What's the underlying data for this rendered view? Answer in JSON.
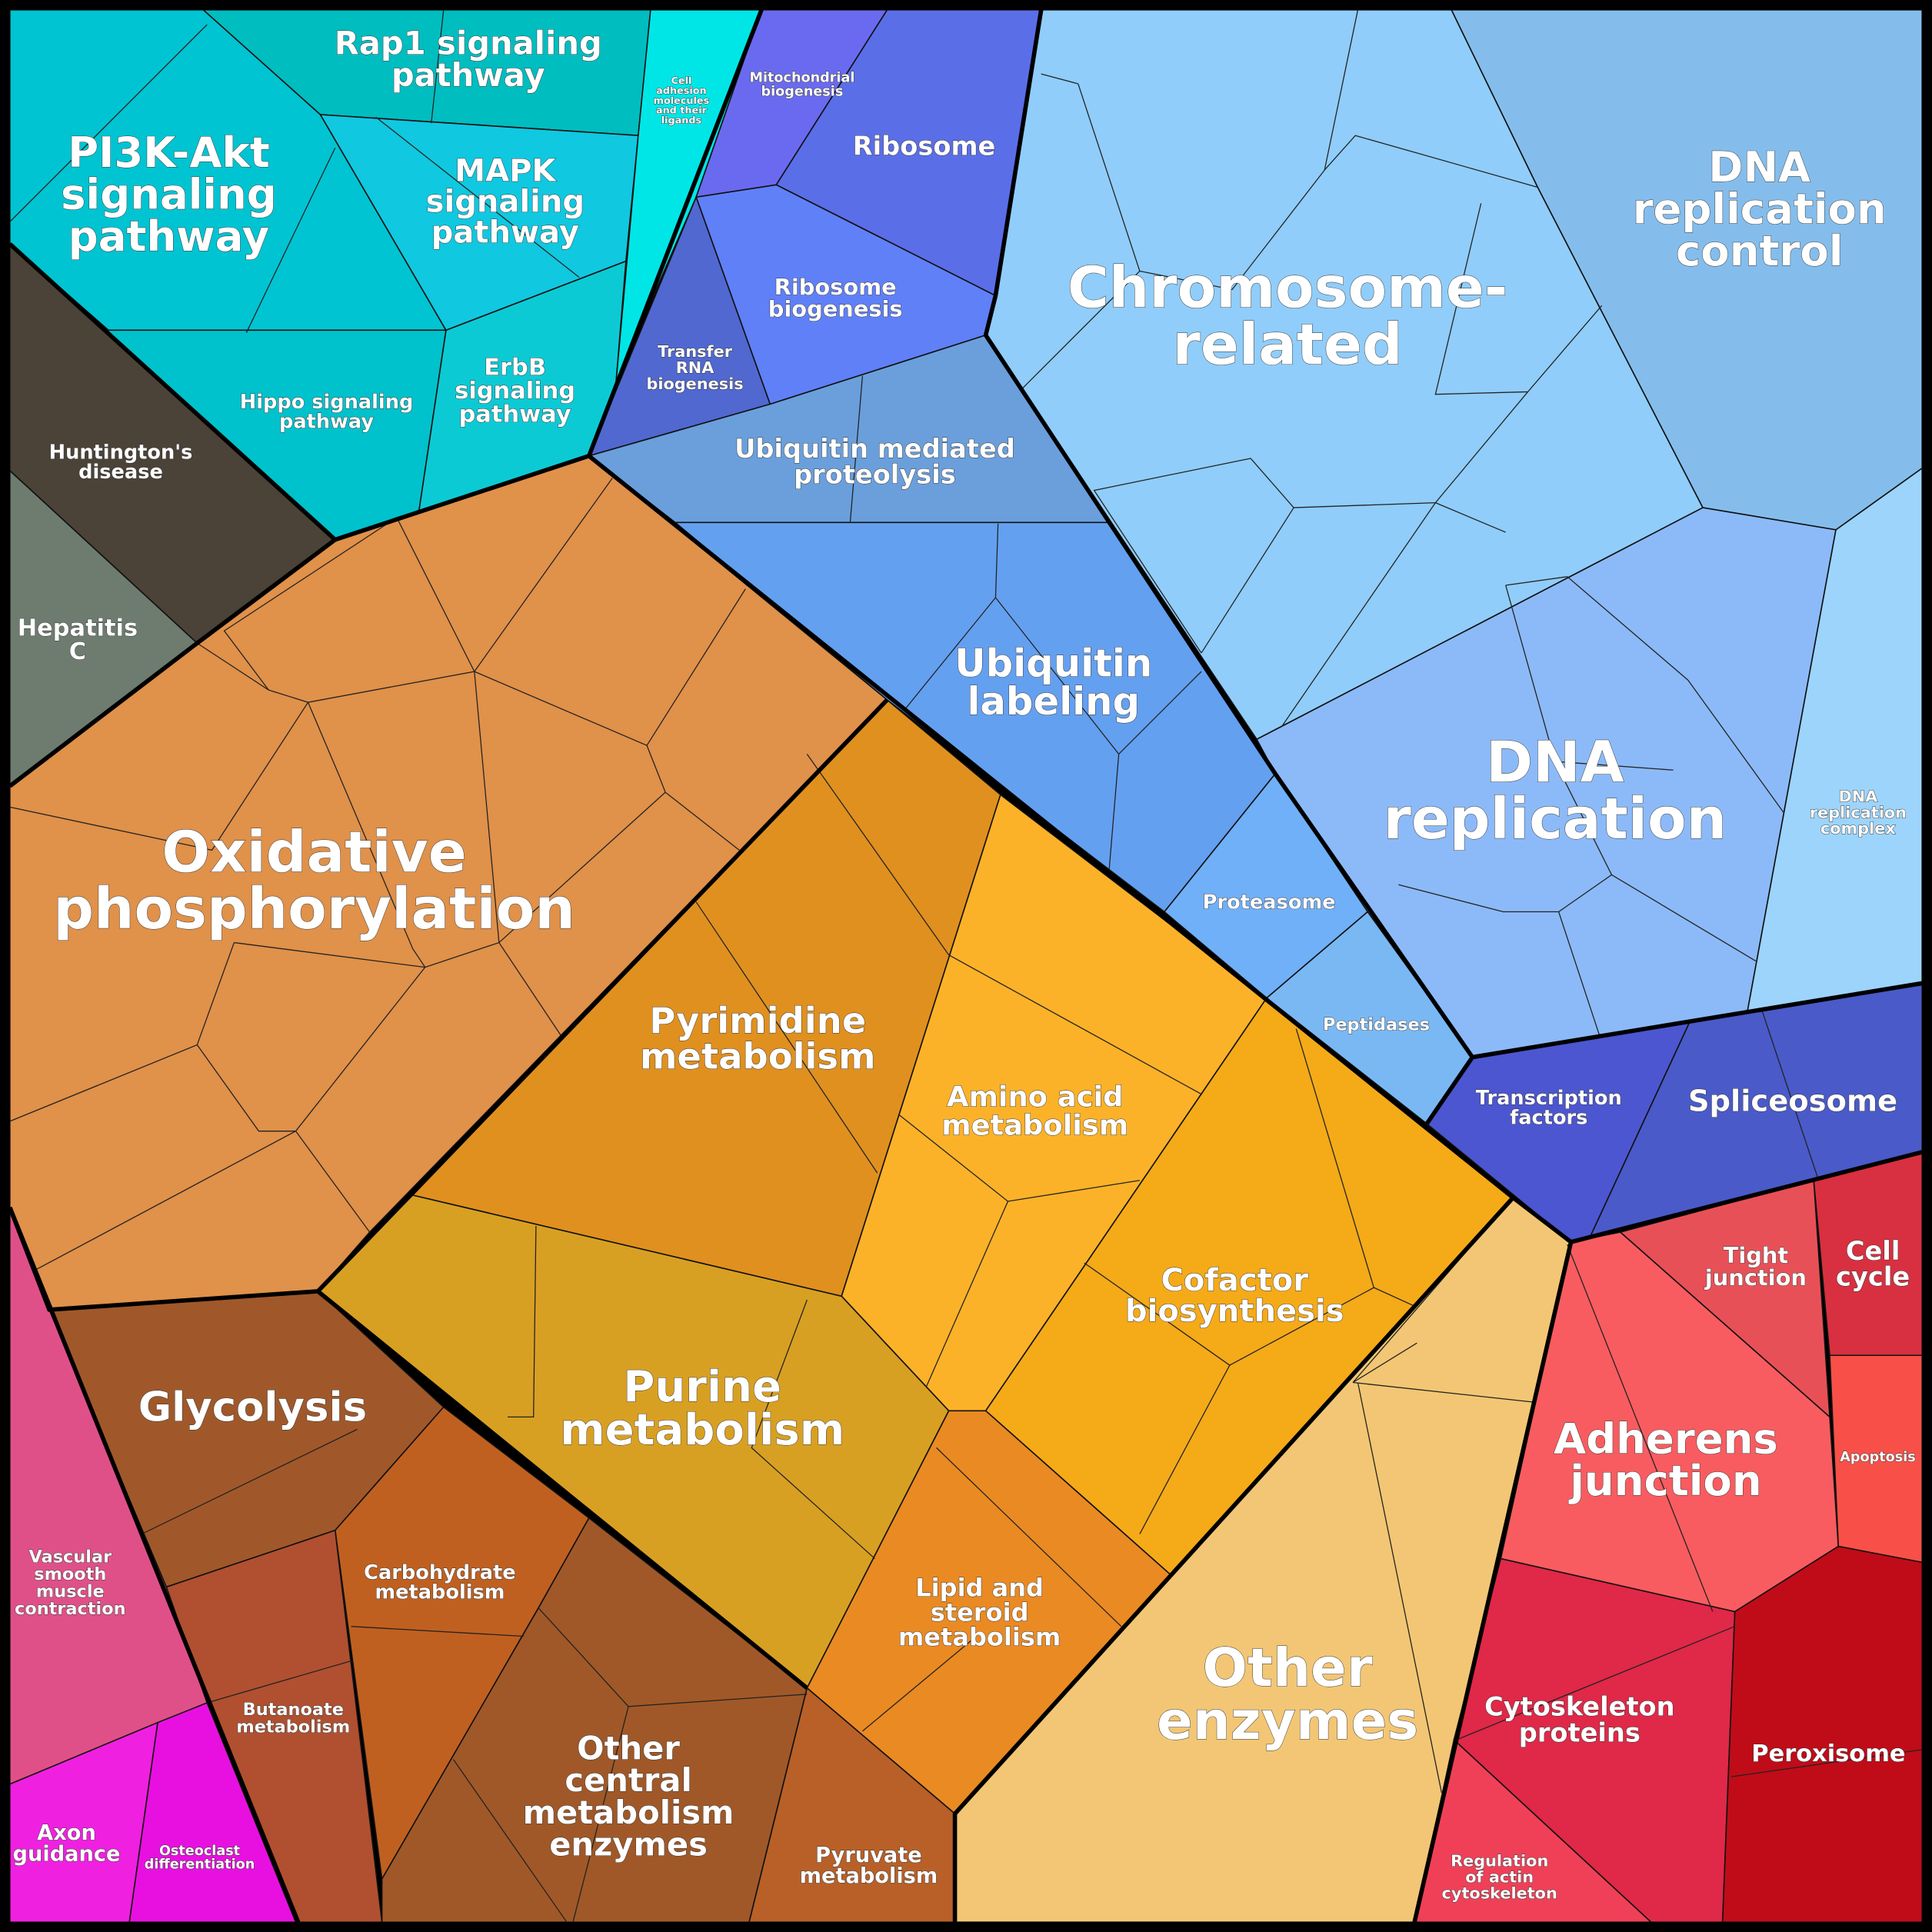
{
  "regions": [
    {
      "lines": [
        "PI3K-Akt",
        "signaling",
        "pathway"
      ]
    },
    {
      "lines": [
        "Rap1 signaling",
        "pathway"
      ]
    },
    {
      "lines": [
        "MAPK",
        "signaling",
        "pathway"
      ]
    },
    {
      "lines": [
        "Hippo signaling",
        "pathway"
      ]
    },
    {
      "lines": [
        "ErbB",
        "signaling",
        "pathway"
      ]
    },
    {
      "lines": [
        "Cell",
        "adhesion",
        "molecules",
        "and their",
        "ligands"
      ]
    },
    {
      "lines": [
        "Huntington's",
        "disease"
      ]
    },
    {
      "lines": [
        "Hepatitis",
        "C"
      ]
    },
    {
      "lines": [
        "Mitochondrial",
        "biogenesis"
      ]
    },
    {
      "lines": [
        "Ribosome"
      ]
    },
    {
      "lines": [
        "Ribosome",
        "biogenesis"
      ]
    },
    {
      "lines": [
        "Transfer",
        "RNA",
        "biogenesis"
      ]
    },
    {
      "lines": [
        "Ubiquitin mediated",
        "proteolysis"
      ]
    },
    {
      "lines": [
        "Ubiquitin",
        "labeling"
      ]
    },
    {
      "lines": [
        "Proteasome"
      ]
    },
    {
      "lines": [
        "Peptidases"
      ]
    },
    {
      "lines": [
        "Chromosome-",
        "related"
      ]
    },
    {
      "lines": [
        "DNA",
        "replication",
        "control"
      ]
    },
    {
      "lines": [
        "DNA",
        "replication"
      ]
    },
    {
      "lines": [
        "DNA",
        "replication",
        "complex"
      ]
    },
    {
      "lines": [
        "Transcription",
        "factors"
      ]
    },
    {
      "lines": [
        "Spliceosome"
      ]
    },
    {
      "lines": [
        "Oxidative",
        "phosphorylation"
      ]
    },
    {
      "lines": [
        "Pyrimidine",
        "metabolism"
      ]
    },
    {
      "lines": [
        "Amino acid",
        "metabolism"
      ]
    },
    {
      "lines": [
        "Cofactor",
        "biosynthesis"
      ]
    },
    {
      "lines": [
        "Purine",
        "metabolism"
      ]
    },
    {
      "lines": [
        "Lipid and",
        "steroid",
        "metabolism"
      ]
    },
    {
      "lines": [
        "Other",
        "enzymes"
      ]
    },
    {
      "lines": [
        "Glycolysis"
      ]
    },
    {
      "lines": [
        "Carbohydrate",
        "metabolism"
      ]
    },
    {
      "lines": [
        "Butanoate",
        "metabolism"
      ]
    },
    {
      "lines": [
        "Other",
        "central",
        "metabolism",
        "enzymes"
      ]
    },
    {
      "lines": [
        "Pyruvate",
        "metabolism"
      ]
    },
    {
      "lines": [
        "Vascular",
        "smooth",
        "muscle",
        "contraction"
      ]
    },
    {
      "lines": [
        "Axon",
        "guidance"
      ]
    },
    {
      "lines": [
        "Osteoclast",
        "differentiation"
      ]
    },
    {
      "lines": [
        "Tight",
        "junction"
      ]
    },
    {
      "lines": [
        "Adherens",
        "junction"
      ]
    },
    {
      "lines": [
        "Cell",
        "cycle"
      ]
    },
    {
      "lines": [
        "Apoptosis"
      ]
    },
    {
      "lines": [
        "Cytoskeleton",
        "proteins"
      ]
    },
    {
      "lines": [
        "Regulation",
        "of actin",
        "cytoskeleton"
      ]
    },
    {
      "lines": [
        "Peroxisome"
      ]
    }
  ]
}
